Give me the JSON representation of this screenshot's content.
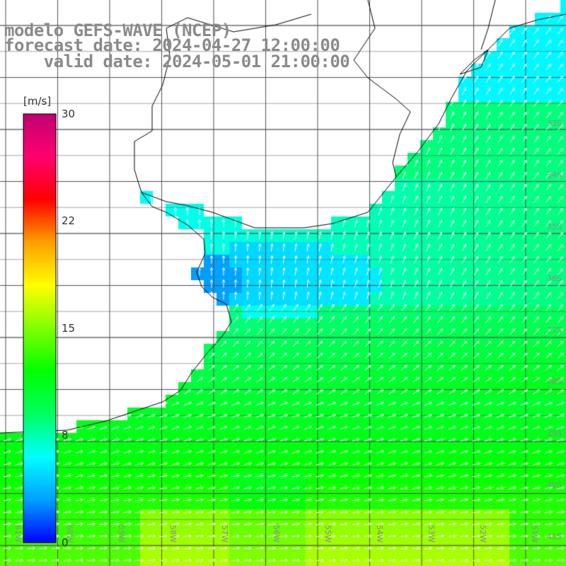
{
  "header": {
    "line1": "modelo GEFS-WAVE (NCEP)",
    "line2": "forecast date: 2024-04-27 12:00:00",
    "line3": "    valid date: 2024-05-01 21:00:00"
  },
  "colorbar": {
    "unit": "[m/s]",
    "ticks": [
      "30",
      "22",
      "15",
      "8",
      "0"
    ],
    "range": [
      0,
      30
    ],
    "gradient_stops": [
      "#0000ff",
      "#00a0ff",
      "#00ffff",
      "#00ff60",
      "#00ff00",
      "#80ff00",
      "#ffff00",
      "#ffa000",
      "#ff0000",
      "#ff0070",
      "#c00070"
    ]
  },
  "map": {
    "lat_labels": [
      "33S",
      "34S",
      "35S",
      "36S",
      "37S",
      "38S",
      "39S",
      "40S",
      "41S"
    ],
    "lon_labels": [
      "61W",
      "60W",
      "59W",
      "58W",
      "57W",
      "56W",
      "55W",
      "54W",
      "53W",
      "52W",
      "51W"
    ],
    "vector_color": "#ffffff",
    "coastline_color": "#000000",
    "gridline_color": "#505050",
    "wind_field_regions": [
      {
        "area": "Rio de la Plata estuary",
        "speed_ms": 5,
        "direction": "N"
      },
      {
        "area": "south-east Brazil coast",
        "speed_ms": 6,
        "direction": "NE"
      },
      {
        "area": "offshore Uruguay / Buenos Aires",
        "speed_ms": 9,
        "direction": "NE"
      },
      {
        "area": "south near 40S",
        "speed_ms": 12,
        "direction": "ENE"
      },
      {
        "area": "south-east corner near 41S",
        "speed_ms": 15,
        "direction": "E"
      }
    ]
  }
}
